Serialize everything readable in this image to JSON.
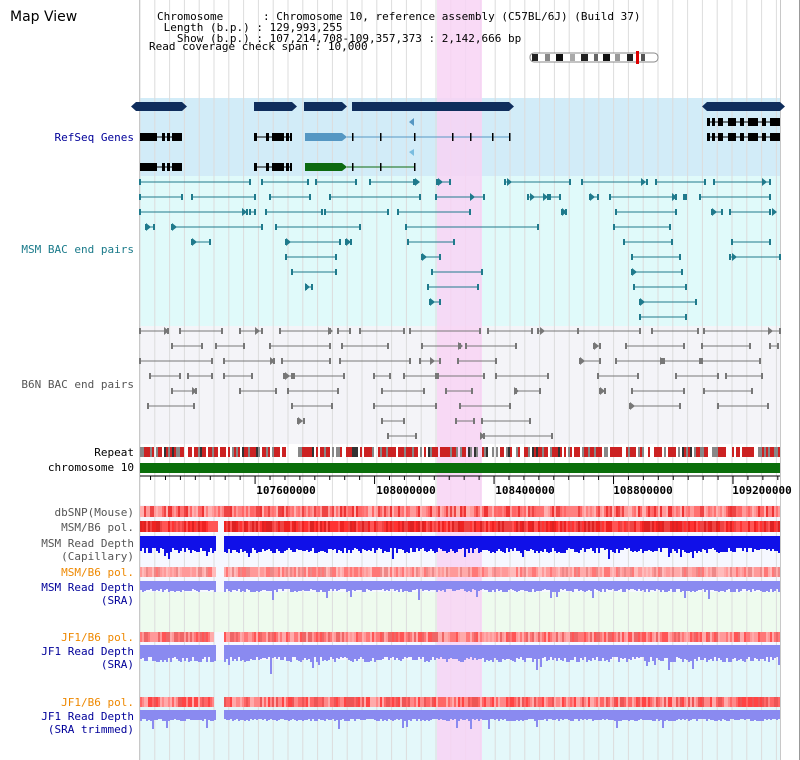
{
  "title": "Map View",
  "header": {
    "chromosome_label": "Chromosome",
    "chromosome_value": "Chromosome 10, reference assembly (C57BL/6J) (Build 37)",
    "length_label": "Length (b.p.)",
    "length_value": "129,993,255",
    "show_label": "Show (b.p.)",
    "show_value": "107,214,708-109,357,373 : 2,142,666 bp",
    "coverage_label": "Read coverage check span",
    "coverage_value": "10,000"
  },
  "tracks": {
    "refseq": "RefSeq Genes",
    "msm_bac": "MSM BAC end pairs",
    "b6n_bac": "B6N BAC end pairs",
    "repeat": "Repeat",
    "chromosome": "chromosome 10",
    "dbsnp": "dbSNP(Mouse)",
    "msm_b6_pol": "MSM/B6 pol.",
    "msm_depth_cap_1": "MSM Read Depth",
    "msm_depth_cap_2": "(Capillary)",
    "msm_b6_pol_2": "MSM/B6 pol.",
    "msm_depth_sra_1": "MSM Read Depth",
    "msm_depth_sra_2": "(SRA)",
    "jf1_b6_pol": "JF1/B6 pol.",
    "jf1_depth_1": "JF1 Read Depth",
    "jf1_depth_2": "(SRA)",
    "jf1_b6_pol_2": "JF1/B6 pol.",
    "jf1_trim_1": "JF1 Read Depth",
    "jf1_trim_2": "(SRA trimmed)"
  },
  "axis": {
    "ticks": [
      "107600000",
      "108000000",
      "108400000",
      "108800000",
      "109200000"
    ],
    "tick_values": [
      107600000,
      108000000,
      108400000,
      108800000,
      109200000
    ],
    "range": [
      107214708,
      109357373
    ]
  },
  "colors": {
    "refseq_bg": "#d2ecf8",
    "msm_bg": "#e0fafa",
    "b6n_bg": "#f4f4f8",
    "highlight": "#f8d4f4",
    "gene_dark": "#0f2d5c",
    "gene_blue": "#5597c3",
    "gene_green": "#0d6a10",
    "bac_msm": "#1f7a8c",
    "bac_b6n": "#777777",
    "chromosome": "#0a6e0a",
    "depth_blue": "#1010e8",
    "depth_light": "#8a8af0",
    "pol_red": "#ee3333",
    "label_blue": "#000099",
    "label_teal": "#1a7a8a",
    "label_orange": "#ee8800"
  }
}
